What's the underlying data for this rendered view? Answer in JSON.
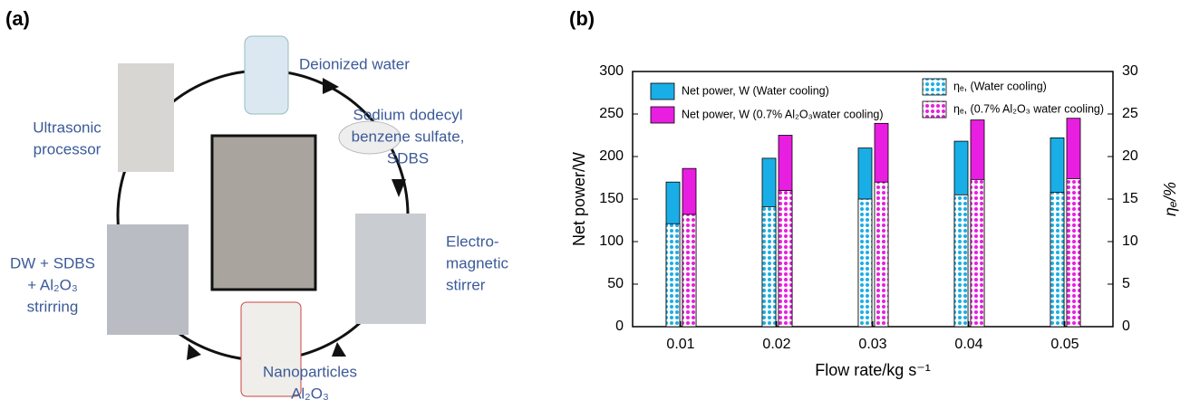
{
  "panel_a": {
    "label": "(a)",
    "labels": [
      {
        "lines": [
          "Deionized water"
        ]
      },
      {
        "lines": [
          "Sodium dodecyl",
          "benzene sulfate,",
          "SDBS"
        ]
      },
      {
        "lines": [
          "Electro-",
          "magnetic",
          "stirrer"
        ]
      },
      {
        "lines": [
          "Nanoparticles",
          "Al₂O₃"
        ]
      },
      {
        "lines": [
          "DW + SDBS",
          "+ Al₂O₃",
          "strirring"
        ]
      },
      {
        "lines": [
          "Ultrasonic",
          "processor"
        ]
      }
    ]
  },
  "chart_data": {
    "type": "bar",
    "panel_label": "(b)",
    "x_label": "Flow rate/kg s⁻¹",
    "y_label": "Net power/W",
    "y2_label": "ηₑ/%",
    "categories": [
      "0.01",
      "0.02",
      "0.03",
      "0.04",
      "0.05"
    ],
    "series": [
      {
        "name": "Net power, W (Water cooling)",
        "color": "#1aaee6",
        "values": [
          170,
          198,
          210,
          218,
          222
        ]
      },
      {
        "name": "Net power, W (0.7% Al₂O₃water cooling)",
        "color": "#e81ee0",
        "values": [
          186,
          225,
          239,
          243,
          245
        ]
      },
      {
        "name": "ηₑ, (Water cooling)",
        "color": "#1aaee6",
        "hatch": true,
        "axis": "y2",
        "values": [
          12.1,
          14.1,
          15.0,
          15.5,
          15.8
        ]
      },
      {
        "name": "ηₑ, (0.7% Al₂O₃ water cooling)",
        "color": "#e81ee0",
        "hatch": true,
        "axis": "y2",
        "values": [
          13.2,
          16.0,
          17.0,
          17.3,
          17.4
        ]
      }
    ],
    "ylim": [
      0,
      300
    ],
    "yticks": [
      0,
      50,
      100,
      150,
      200,
      250,
      300
    ],
    "y2lim": [
      0,
      30
    ],
    "y2ticks": [
      0,
      5,
      10,
      15,
      20,
      25,
      30
    ]
  }
}
